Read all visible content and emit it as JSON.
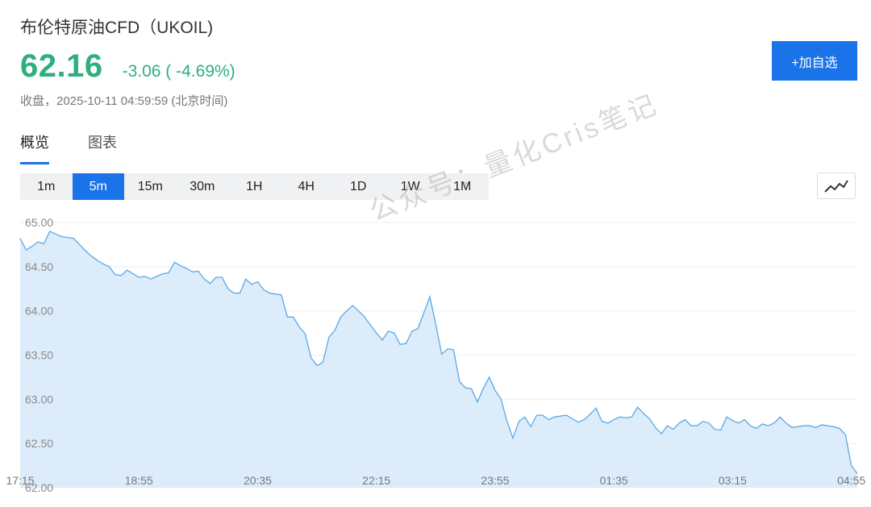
{
  "header": {
    "title": "布伦特原油CFD（UKOIL)",
    "price": "62.16",
    "change": "-3.06 ( -4.69%)",
    "meta": "收盘，2025-10-11 04:59:59 (北京时间)",
    "add_button": "+加自选"
  },
  "tabs": [
    {
      "label": "概览",
      "active": true
    },
    {
      "label": "图表",
      "active": false
    }
  ],
  "periods": [
    {
      "label": "1m",
      "active": false
    },
    {
      "label": "5m",
      "active": true
    },
    {
      "label": "15m",
      "active": false
    },
    {
      "label": "30m",
      "active": false
    },
    {
      "label": "1H",
      "active": false
    },
    {
      "label": "4H",
      "active": false
    },
    {
      "label": "1D",
      "active": false
    },
    {
      "label": "1W",
      "active": false
    },
    {
      "label": "1M",
      "active": false
    }
  ],
  "chart_toggle_icon": "line-chart-icon",
  "watermark": "公众号：量化Cris笔记",
  "colors": {
    "up_down_green": "#2eaf7d",
    "accent": "#1a73e8",
    "line": "#5aa9e6",
    "area": "#dcecfb"
  },
  "chart_data": {
    "type": "area",
    "ylim": [
      62.0,
      65.0
    ],
    "y_ticks": [
      "65.00",
      "64.50",
      "64.00",
      "63.50",
      "63.00",
      "62.50",
      "62.00"
    ],
    "x_ticks": [
      "17:15",
      "18:55",
      "20:35",
      "22:15",
      "23:55",
      "01:35",
      "03:15",
      "04:55"
    ],
    "points": [
      [
        "17:15",
        64.82
      ],
      [
        "17:20",
        64.69
      ],
      [
        "17:25",
        64.73
      ],
      [
        "17:30",
        64.78
      ],
      [
        "17:35",
        64.76
      ],
      [
        "17:40",
        64.9
      ],
      [
        "17:45",
        64.87
      ],
      [
        "17:50",
        64.84
      ],
      [
        "17:55",
        64.83
      ],
      [
        "18:00",
        64.82
      ],
      [
        "18:05",
        64.75
      ],
      [
        "18:10",
        64.68
      ],
      [
        "18:15",
        64.62
      ],
      [
        "18:20",
        64.57
      ],
      [
        "18:25",
        64.53
      ],
      [
        "18:30",
        64.5
      ],
      [
        "18:35",
        64.41
      ],
      [
        "18:40",
        64.4
      ],
      [
        "18:45",
        64.46
      ],
      [
        "18:50",
        64.42
      ],
      [
        "18:55",
        64.38
      ],
      [
        "19:00",
        64.39
      ],
      [
        "19:05",
        64.36
      ],
      [
        "19:10",
        64.39
      ],
      [
        "19:15",
        64.42
      ],
      [
        "19:20",
        64.43
      ],
      [
        "19:25",
        64.55
      ],
      [
        "19:30",
        64.51
      ],
      [
        "19:35",
        64.48
      ],
      [
        "19:40",
        64.44
      ],
      [
        "19:45",
        64.45
      ],
      [
        "19:50",
        64.36
      ],
      [
        "19:55",
        64.31
      ],
      [
        "20:00",
        64.38
      ],
      [
        "20:05",
        64.38
      ],
      [
        "20:10",
        64.25
      ],
      [
        "20:15",
        64.2
      ],
      [
        "20:20",
        64.2
      ],
      [
        "20:25",
        64.36
      ],
      [
        "20:30",
        64.3
      ],
      [
        "20:35",
        64.33
      ],
      [
        "20:40",
        64.24
      ],
      [
        "20:45",
        64.2
      ],
      [
        "20:50",
        64.19
      ],
      [
        "20:55",
        64.18
      ],
      [
        "21:00",
        63.93
      ],
      [
        "21:05",
        63.93
      ],
      [
        "21:10",
        63.82
      ],
      [
        "21:15",
        63.74
      ],
      [
        "21:20",
        63.47
      ],
      [
        "21:25",
        63.38
      ],
      [
        "21:30",
        63.42
      ],
      [
        "21:35",
        63.7
      ],
      [
        "21:40",
        63.78
      ],
      [
        "21:45",
        63.93
      ],
      [
        "21:50",
        64.0
      ],
      [
        "21:55",
        64.06
      ],
      [
        "22:00",
        64.0
      ],
      [
        "22:05",
        63.93
      ],
      [
        "22:10",
        63.84
      ],
      [
        "22:15",
        63.75
      ],
      [
        "22:20",
        63.67
      ],
      [
        "22:25",
        63.77
      ],
      [
        "22:30",
        63.75
      ],
      [
        "22:35",
        63.62
      ],
      [
        "22:40",
        63.63
      ],
      [
        "22:45",
        63.77
      ],
      [
        "22:50",
        63.8
      ],
      [
        "22:55",
        63.98
      ],
      [
        "23:00",
        64.16
      ],
      [
        "23:05",
        63.85
      ],
      [
        "23:10",
        63.51
      ],
      [
        "23:15",
        63.57
      ],
      [
        "23:20",
        63.56
      ],
      [
        "23:25",
        63.2
      ],
      [
        "23:30",
        63.13
      ],
      [
        "23:35",
        63.12
      ],
      [
        "23:40",
        62.97
      ],
      [
        "23:45",
        63.12
      ],
      [
        "23:50",
        63.25
      ],
      [
        "23:55",
        63.1
      ],
      [
        "00:00",
        63.0
      ],
      [
        "00:05",
        62.75
      ],
      [
        "00:10",
        62.56
      ],
      [
        "00:15",
        62.75
      ],
      [
        "00:20",
        62.8
      ],
      [
        "00:25",
        62.69
      ],
      [
        "00:30",
        62.82
      ],
      [
        "00:35",
        62.82
      ],
      [
        "00:40",
        62.77
      ],
      [
        "00:45",
        62.8
      ],
      [
        "00:50",
        62.81
      ],
      [
        "00:55",
        62.82
      ],
      [
        "01:00",
        62.78
      ],
      [
        "01:05",
        62.74
      ],
      [
        "01:10",
        62.77
      ],
      [
        "01:15",
        62.83
      ],
      [
        "01:20",
        62.9
      ],
      [
        "01:25",
        62.75
      ],
      [
        "01:30",
        62.73
      ],
      [
        "01:35",
        62.77
      ],
      [
        "01:40",
        62.8
      ],
      [
        "01:45",
        62.79
      ],
      [
        "01:50",
        62.8
      ],
      [
        "01:55",
        62.91
      ],
      [
        "02:00",
        62.84
      ],
      [
        "02:05",
        62.78
      ],
      [
        "02:10",
        62.68
      ],
      [
        "02:15",
        62.61
      ],
      [
        "02:20",
        62.7
      ],
      [
        "02:25",
        62.66
      ],
      [
        "02:30",
        62.73
      ],
      [
        "02:35",
        62.77
      ],
      [
        "02:40",
        62.7
      ],
      [
        "02:45",
        62.7
      ],
      [
        "02:50",
        62.75
      ],
      [
        "02:55",
        62.73
      ],
      [
        "03:00",
        62.66
      ],
      [
        "03:05",
        62.65
      ],
      [
        "03:10",
        62.8
      ],
      [
        "03:15",
        62.76
      ],
      [
        "03:20",
        62.73
      ],
      [
        "03:25",
        62.77
      ],
      [
        "03:30",
        62.7
      ],
      [
        "03:35",
        62.67
      ],
      [
        "03:40",
        62.72
      ],
      [
        "03:45",
        62.7
      ],
      [
        "03:50",
        62.73
      ],
      [
        "03:55",
        62.8
      ],
      [
        "04:00",
        62.73
      ],
      [
        "04:05",
        62.68
      ],
      [
        "04:10",
        62.69
      ],
      [
        "04:15",
        62.7
      ],
      [
        "04:20",
        62.7
      ],
      [
        "04:25",
        62.68
      ],
      [
        "04:30",
        62.71
      ],
      [
        "04:35",
        62.7
      ],
      [
        "04:40",
        62.69
      ],
      [
        "04:45",
        62.67
      ],
      [
        "04:50",
        62.6
      ],
      [
        "04:55",
        62.25
      ],
      [
        "04:59",
        62.16
      ]
    ]
  }
}
